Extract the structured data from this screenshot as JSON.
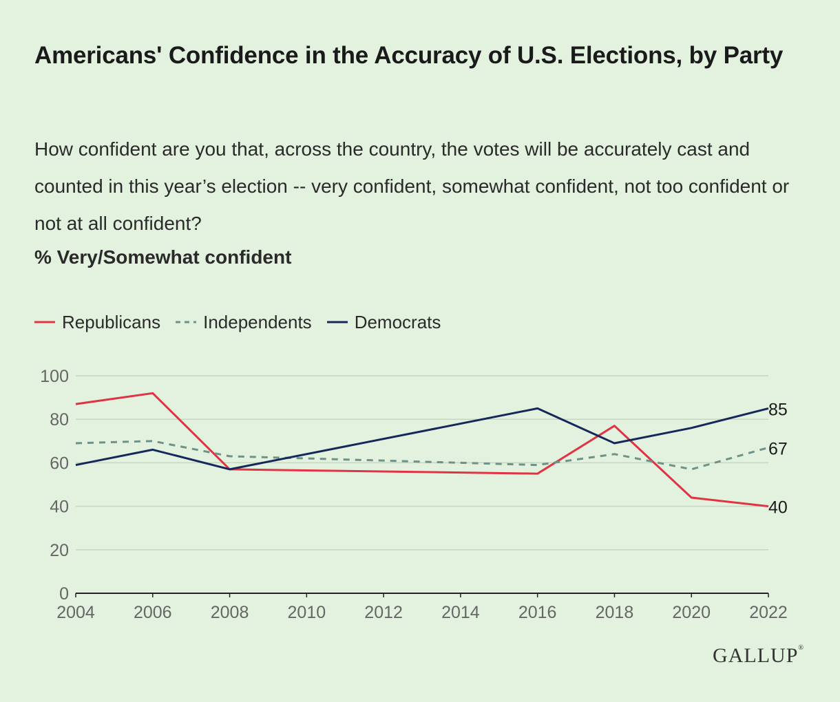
{
  "title": "Americans' Confidence in the Accuracy of U.S. Elections, by Party",
  "subtitle": "How confident are you that, across the country, the votes will be accurately cast and counted in this year’s election -- very confident, somewhat confident, not too confident or not at all confident?",
  "unit_label": "% Very/Somewhat confident",
  "logo": "GALLUP",
  "colors": {
    "background": "#e3f1df",
    "republicans": "#e03343",
    "independents": "#6f9187",
    "democrats": "#14285a",
    "grid": "#c5d6c1",
    "axis": "#222222",
    "tick_text": "#666666"
  },
  "chart_data": {
    "type": "line",
    "title": "Americans' Confidence in the Accuracy of U.S. Elections, by Party",
    "ylabel": "% Very/Somewhat confident",
    "xlim": [
      2004,
      2022
    ],
    "ylim": [
      0,
      100
    ],
    "yticks": [
      0,
      20,
      40,
      60,
      80,
      100
    ],
    "xticks": [
      2004,
      2006,
      2008,
      2010,
      2012,
      2014,
      2016,
      2018,
      2020,
      2022
    ],
    "grid": true,
    "legend_position": "top-left",
    "series": [
      {
        "name": "Republicans",
        "key": "republicans",
        "style": "solid",
        "points": [
          [
            2004,
            87
          ],
          [
            2006,
            92
          ],
          [
            2008,
            57
          ],
          [
            2016,
            55
          ],
          [
            2018,
            77
          ],
          [
            2020,
            44
          ],
          [
            2022,
            40
          ]
        ],
        "end_label": "40"
      },
      {
        "name": "Independents",
        "key": "independents",
        "style": "dashed",
        "points": [
          [
            2004,
            69
          ],
          [
            2006,
            70
          ],
          [
            2008,
            63
          ],
          [
            2016,
            59
          ],
          [
            2018,
            64
          ],
          [
            2020,
            57
          ],
          [
            2022,
            67
          ]
        ],
        "end_label": "67"
      },
      {
        "name": "Democrats",
        "key": "democrats",
        "style": "solid",
        "points": [
          [
            2004,
            59
          ],
          [
            2006,
            66
          ],
          [
            2008,
            57
          ],
          [
            2016,
            85
          ],
          [
            2018,
            69
          ],
          [
            2020,
            76
          ],
          [
            2022,
            85
          ]
        ],
        "end_label": "85"
      }
    ]
  }
}
